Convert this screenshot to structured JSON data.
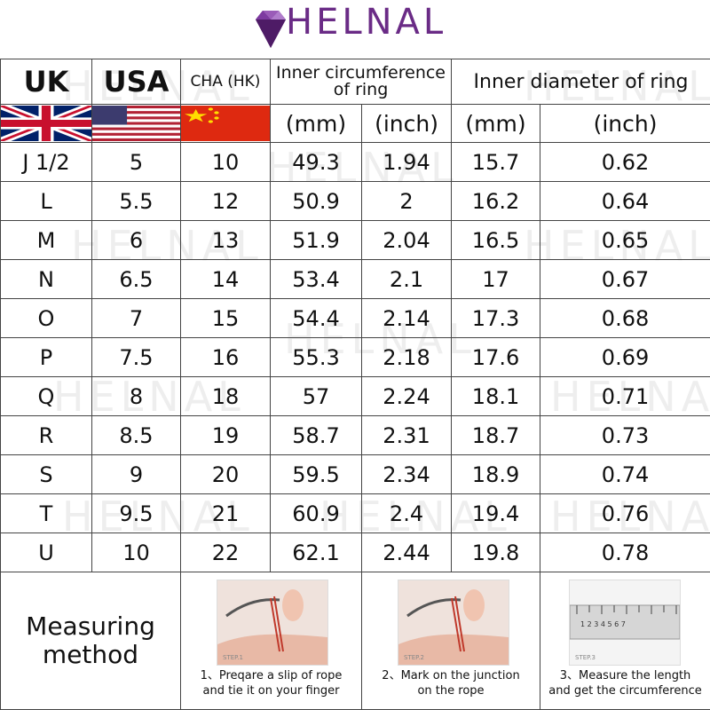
{
  "brand": {
    "name": "HELNAL",
    "color": "#6a2b86",
    "logo_icon": "diamond-icon"
  },
  "watermark_text": "HELNAL",
  "header": {
    "uk": "UK",
    "usa": "USA",
    "cha": "CHA (HK)",
    "circ": "Inner circumference of ring",
    "diam": "Inner diameter of ring",
    "mm": "(mm)",
    "inch": "(inch)"
  },
  "flags": {
    "uk": "uk-flag-icon",
    "usa": "usa-flag-icon",
    "china": "china-flag-icon"
  },
  "rows": [
    {
      "uk": "J 1/2",
      "usa": "5",
      "cha": "10",
      "circ_mm": "49.3",
      "circ_in": "1.94",
      "diam_mm": "15.7",
      "diam_in": "0.62"
    },
    {
      "uk": "L",
      "usa": "5.5",
      "cha": "12",
      "circ_mm": "50.9",
      "circ_in": "2",
      "diam_mm": "16.2",
      "diam_in": "0.64"
    },
    {
      "uk": "M",
      "usa": "6",
      "cha": "13",
      "circ_mm": "51.9",
      "circ_in": "2.04",
      "diam_mm": "16.5",
      "diam_in": "0.65"
    },
    {
      "uk": "N",
      "usa": "6.5",
      "cha": "14",
      "circ_mm": "53.4",
      "circ_in": "2.1",
      "diam_mm": "17",
      "diam_in": "0.67"
    },
    {
      "uk": "O",
      "usa": "7",
      "cha": "15",
      "circ_mm": "54.4",
      "circ_in": "2.14",
      "diam_mm": "17.3",
      "diam_in": "0.68"
    },
    {
      "uk": "P",
      "usa": "7.5",
      "cha": "16",
      "circ_mm": "55.3",
      "circ_in": "2.18",
      "diam_mm": "17.6",
      "diam_in": "0.69"
    },
    {
      "uk": "Q",
      "usa": "8",
      "cha": "18",
      "circ_mm": "57",
      "circ_in": "2.24",
      "diam_mm": "18.1",
      "diam_in": "0.71"
    },
    {
      "uk": "R",
      "usa": "8.5",
      "cha": "19",
      "circ_mm": "58.7",
      "circ_in": "2.31",
      "diam_mm": "18.7",
      "diam_in": "0.73"
    },
    {
      "uk": "S",
      "usa": "9",
      "cha": "20",
      "circ_mm": "59.5",
      "circ_in": "2.34",
      "diam_mm": "18.9",
      "diam_in": "0.74"
    },
    {
      "uk": "T",
      "usa": "9.5",
      "cha": "21",
      "circ_mm": "60.9",
      "circ_in": "2.4",
      "diam_mm": "19.4",
      "diam_in": "0.76"
    },
    {
      "uk": "U",
      "usa": "10",
      "cha": "22",
      "circ_mm": "62.1",
      "circ_in": "2.44",
      "diam_mm": "19.8",
      "diam_in": "0.78"
    }
  ],
  "method": {
    "title_line1": "Measuring",
    "title_line2": "method",
    "steps": [
      {
        "icon": "hand-with-rope-photo",
        "tag": "STEP.1",
        "caption_line1": "1、Preqare a slip of rope",
        "caption_line2": "and tie it on your finger"
      },
      {
        "icon": "hand-mark-junction-photo",
        "tag": "STEP.2",
        "caption_line1": "2、Mark on the junction",
        "caption_line2": "on the rope"
      },
      {
        "icon": "ruler-photo",
        "tag": "STEP.3",
        "caption_line1": "3、Measure the length",
        "caption_line2": "and get the circumference"
      }
    ]
  }
}
